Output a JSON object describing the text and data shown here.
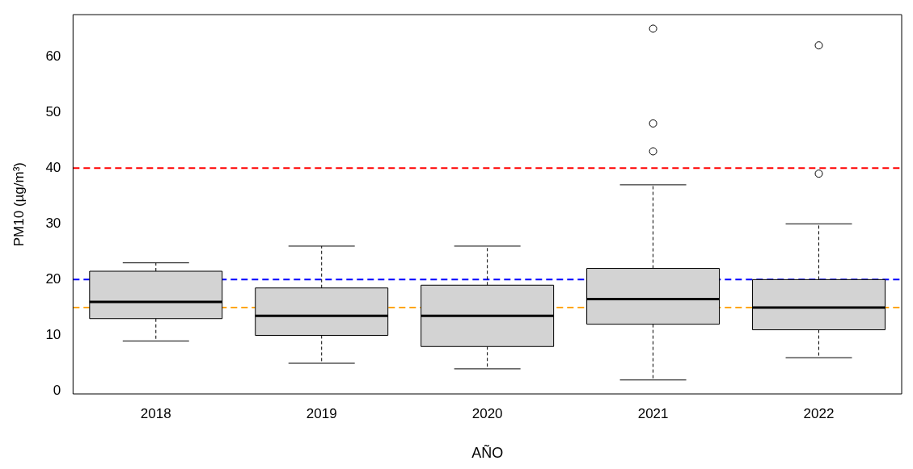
{
  "chart_data": {
    "type": "box",
    "xlabel": "AÑO",
    "ylabel": "PM10 (µg/m³)",
    "categories": [
      "2018",
      "2019",
      "2020",
      "2021",
      "2022"
    ],
    "color": "#d3d3d3",
    "boxes": [
      {
        "low": 9,
        "q1": 13,
        "median": 16,
        "q3": 21.5,
        "high": 23
      },
      {
        "low": 5,
        "q1": 10,
        "median": 13.5,
        "q3": 18.5,
        "high": 26
      },
      {
        "low": 4,
        "q1": 8,
        "median": 13.5,
        "q3": 19,
        "high": 26
      },
      {
        "low": 2,
        "q1": 12,
        "median": 16.5,
        "q3": 22,
        "high": 37,
        "outliers": [
          43,
          48,
          65
        ]
      },
      {
        "low": 6,
        "q1": 11,
        "median": 15,
        "q3": 20,
        "high": 30,
        "outliers": [
          39,
          62
        ]
      }
    ],
    "ref_lines": [
      {
        "axis": "y",
        "value": 40,
        "color": "#ff0000",
        "line_style": "dashed"
      },
      {
        "axis": "y",
        "value": 20,
        "color": "#0000ff",
        "line_style": "dashed"
      },
      {
        "axis": "y",
        "value": 15,
        "color": "#ffa500",
        "line_style": "dashed"
      }
    ],
    "ylim": [
      -0.5,
      67.5
    ],
    "yticks": [
      0,
      10,
      20,
      30,
      40,
      50,
      60
    ]
  }
}
